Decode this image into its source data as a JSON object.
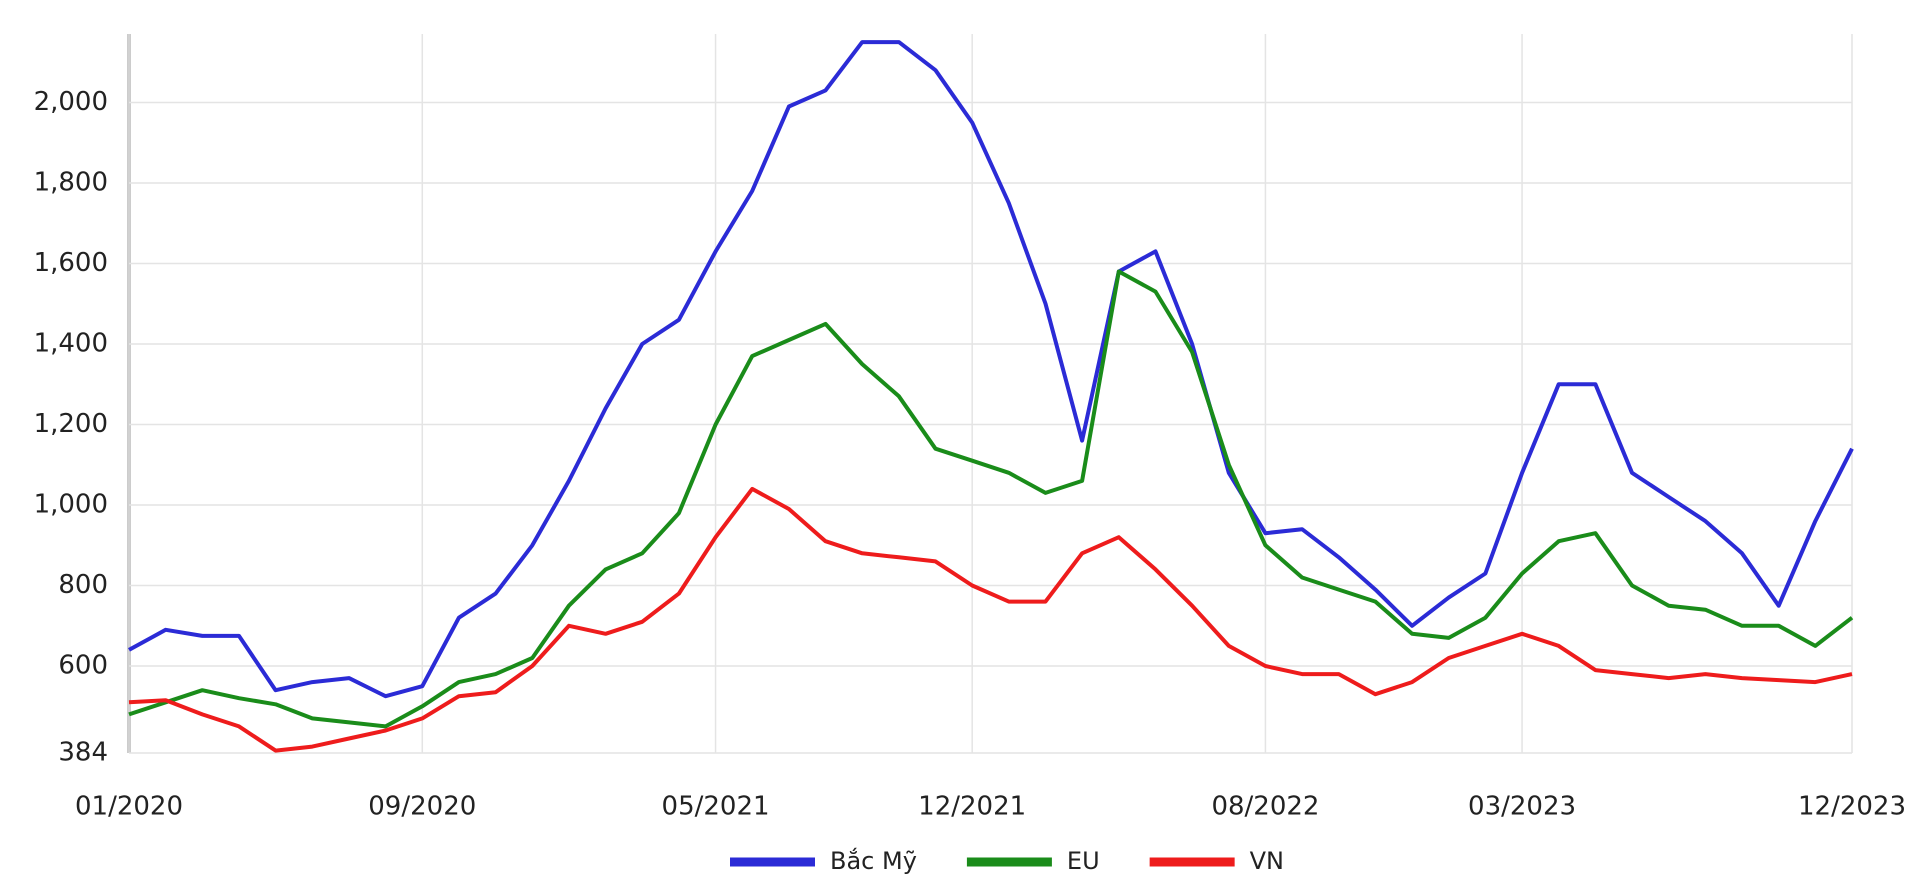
{
  "chart_data": {
    "type": "line",
    "categories": [
      "01/2020",
      null,
      null,
      null,
      null,
      null,
      null,
      null,
      "09/2020",
      null,
      null,
      null,
      null,
      null,
      null,
      null,
      "05/2021",
      null,
      null,
      null,
      null,
      null,
      null,
      "12/2021",
      null,
      null,
      null,
      null,
      null,
      null,
      null,
      "08/2022",
      null,
      null,
      null,
      null,
      null,
      null,
      "03/2023",
      null,
      null,
      null,
      null,
      null,
      null,
      null,
      null,
      "12/2023"
    ],
    "series": [
      {
        "name": "Bắc Mỹ",
        "color": "#2b2bd6",
        "values": [
          640,
          690,
          675,
          675,
          540,
          560,
          570,
          525,
          550,
          720,
          780,
          900,
          1060,
          1240,
          1400,
          1460,
          1630,
          1780,
          1990,
          2030,
          2150,
          2150,
          2080,
          1950,
          1750,
          1500,
          1160,
          1580,
          1630,
          1400,
          1080,
          930,
          940,
          870,
          790,
          700,
          770,
          830,
          1080,
          1300,
          1300,
          1080,
          1020,
          960,
          880,
          750,
          960,
          1140
        ]
      },
      {
        "name": "EU",
        "color": "#1a8c1a",
        "values": [
          480,
          510,
          540,
          520,
          505,
          470,
          460,
          450,
          500,
          560,
          580,
          620,
          750,
          840,
          880,
          980,
          1200,
          1370,
          1410,
          1450,
          1350,
          1270,
          1140,
          1110,
          1080,
          1030,
          1060,
          1580,
          1530,
          1380,
          1100,
          900,
          820,
          790,
          760,
          680,
          670,
          720,
          830,
          910,
          930,
          800,
          750,
          740,
          700,
          700,
          650,
          720
        ]
      },
      {
        "name": "VN",
        "color": "#ee1c1c",
        "values": [
          510,
          515,
          480,
          450,
          390,
          400,
          420,
          440,
          470,
          525,
          535,
          600,
          700,
          680,
          710,
          780,
          920,
          1040,
          990,
          910,
          880,
          870,
          860,
          800,
          760,
          760,
          880,
          920,
          840,
          750,
          650,
          600,
          580,
          580,
          530,
          560,
          620,
          650,
          680,
          650,
          590,
          580,
          570,
          580,
          570,
          565,
          560,
          580
        ]
      }
    ],
    "ylim": [
      384,
      2170
    ],
    "yticks": [
      384,
      600,
      800,
      {
        "value": 1000,
        "label": "1,000"
      },
      {
        "value": 1200,
        "label": "1,200"
      },
      {
        "value": 1400,
        "label": "1,400"
      },
      {
        "value": 1600,
        "label": "1,600"
      },
      {
        "value": 1800,
        "label": "1,800"
      },
      {
        "value": 2000,
        "label": "2,000"
      }
    ],
    "grid": true,
    "legend": "bottom"
  }
}
